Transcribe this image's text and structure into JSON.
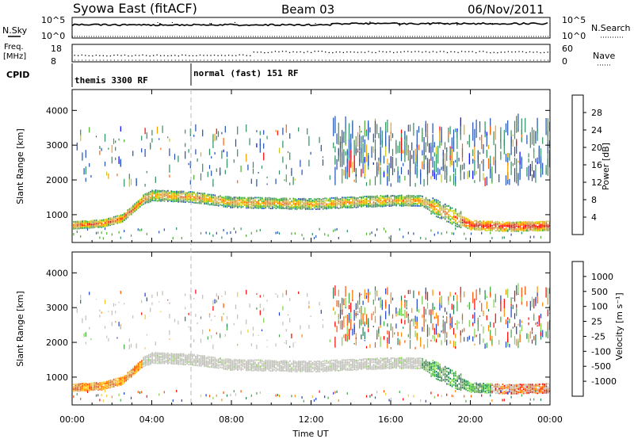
{
  "header": {
    "station": "Syowa East (fitACF)",
    "beam": "Beam 03",
    "date": "06/Nov/2011"
  },
  "top_panels": {
    "nsky_label": "N.Sky",
    "nsky_ticks": [
      "10^5",
      "10^0"
    ],
    "nsearch_label": "N.Search",
    "nsearch_ticks": [
      "10^5",
      "10^0"
    ],
    "freq_label_1": "Freq.",
    "freq_label_2": "[MHz]",
    "freq_ticks": [
      "18",
      "8"
    ],
    "nave_label": "Nave",
    "nave_ticks": [
      "60",
      "0"
    ],
    "cpid_label": "CPID",
    "cpid_segments": [
      "themis 3300 RF",
      "normal (fast) 151 RF"
    ]
  },
  "chart_data": [
    {
      "type": "heatmap",
      "name": "power",
      "ylabel": "Slant Range [km]",
      "yticks": [
        "1000",
        "2000",
        "3000",
        "4000"
      ],
      "ylim": [
        200,
        4600
      ],
      "colorbar_label": "Power [dB]",
      "colorbar_ticks": [
        "4",
        "8",
        "12",
        "16",
        "20",
        "24",
        "28"
      ],
      "colors": [
        "#0000ff",
        "#1e4fb4",
        "#2f8f5f",
        "#4caa2a",
        "#c8c814",
        "#f5a000",
        "#ff6000",
        "#ff0000"
      ],
      "echo_band": [
        {
          "t": 0,
          "r": 700
        },
        {
          "t": 1.5,
          "r": 750
        },
        {
          "t": 2.5,
          "r": 900
        },
        {
          "t": 3.5,
          "r": 1400
        },
        {
          "t": 4,
          "r": 1550
        },
        {
          "t": 6,
          "r": 1500
        },
        {
          "t": 8,
          "r": 1350
        },
        {
          "t": 12,
          "r": 1300
        },
        {
          "t": 16,
          "r": 1400
        },
        {
          "t": 17.5,
          "r": 1400
        },
        {
          "t": 18.5,
          "r": 1100
        },
        {
          "t": 20,
          "r": 700
        },
        {
          "t": 22,
          "r": 650
        },
        {
          "t": 24,
          "r": 680
        }
      ]
    },
    {
      "type": "heatmap",
      "name": "velocity",
      "ylabel": "Slant Range [km]",
      "yticks": [
        "1000",
        "2000",
        "3000",
        "4000"
      ],
      "ylim": [
        200,
        4600
      ],
      "colorbar_label": "Velocity [m s⁻¹]",
      "colorbar_ticks": [
        "1000",
        "500",
        "100",
        "25",
        "-25",
        "-100",
        "-500",
        "-1000"
      ],
      "colors": [
        "#1a3fd0",
        "#1f7a55",
        "#3ca83c",
        "#7fd04a",
        "#c0c0b8",
        "#f5c830",
        "#ff8c00",
        "#ff5000",
        "#ff0000"
      ]
    }
  ],
  "time_axis": {
    "label": "Time UT",
    "ticks": [
      "00:00",
      "04:00",
      "08:00",
      "12:00",
      "16:00",
      "20:00",
      "00:00"
    ],
    "range_hours": [
      0,
      24
    ]
  }
}
